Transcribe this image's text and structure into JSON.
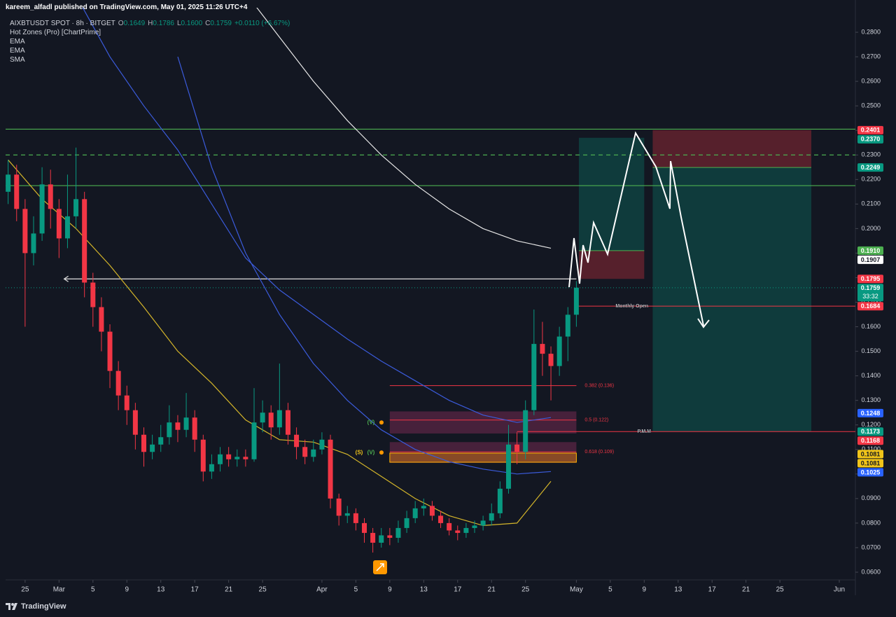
{
  "header": {
    "publisher": "kareem_alfadl published on TradingView.com, May 01, 2025 11:26 UTC+4"
  },
  "legend": {
    "symbol": "AIXBTUSDT SPOT · 8h · BITGET",
    "ohlc": [
      {
        "key": "O",
        "value": "0.1649"
      },
      {
        "key": "H",
        "value": "0.1786"
      },
      {
        "key": "L",
        "value": "0.1600"
      },
      {
        "key": "C",
        "value": "0.1759"
      }
    ],
    "change": "+0.0110 (+6.67%)",
    "indicators": [
      "Hot Zones (Pro) [ChartPrime]",
      "EMA",
      "EMA",
      "SMA"
    ]
  },
  "chart_data": {
    "type": "candlestick",
    "xlim": [
      -2.3,
      97.9
    ],
    "xticks": [
      {
        "value": 0,
        "label": "25"
      },
      {
        "value": 4,
        "label": "Mar"
      },
      {
        "value": 8,
        "label": "5"
      },
      {
        "value": 12,
        "label": "9"
      },
      {
        "value": 16,
        "label": "13"
      },
      {
        "value": 20,
        "label": "17"
      },
      {
        "value": 24,
        "label": "21"
      },
      {
        "value": 28,
        "label": "25"
      },
      {
        "value": 35,
        "label": "Apr"
      },
      {
        "value": 39,
        "label": "5"
      },
      {
        "value": 43,
        "label": "9"
      },
      {
        "value": 47,
        "label": "13"
      },
      {
        "value": 51,
        "label": "17"
      },
      {
        "value": 55,
        "label": "21"
      },
      {
        "value": 59,
        "label": "25"
      },
      {
        "value": 65,
        "label": "May"
      },
      {
        "value": 69,
        "label": "5"
      },
      {
        "value": 73,
        "label": "9"
      },
      {
        "value": 77,
        "label": "13"
      },
      {
        "value": 81,
        "label": "17"
      },
      {
        "value": 85,
        "label": "21"
      },
      {
        "value": 89,
        "label": "25"
      },
      {
        "value": 96,
        "label": "Jun"
      }
    ],
    "ylim": [
      0.057,
      0.29
    ],
    "yticks": [
      {
        "value": 0.06,
        "label": "0.0600"
      },
      {
        "value": 0.07,
        "label": "0.0700"
      },
      {
        "value": 0.08,
        "label": "0.0800"
      },
      {
        "value": 0.09,
        "label": "0.0900"
      },
      {
        "value": 0.1,
        "label": "0.1000"
      },
      {
        "value": 0.11,
        "label": "0.1100"
      },
      {
        "value": 0.12,
        "label": "0.1200"
      },
      {
        "value": 0.13,
        "label": "0.1300"
      },
      {
        "value": 0.14,
        "label": "0.1400"
      },
      {
        "value": 0.15,
        "label": "0.1500"
      },
      {
        "value": 0.16,
        "label": "0.1600"
      },
      {
        "value": 0.17,
        "label": "0.1700"
      },
      {
        "value": 0.18,
        "label": "0.1800"
      },
      {
        "value": 0.19,
        "label": "0.1900"
      },
      {
        "value": 0.2,
        "label": "0.2000"
      },
      {
        "value": 0.21,
        "label": "0.2100"
      },
      {
        "value": 0.22,
        "label": "0.2200"
      },
      {
        "value": 0.23,
        "label": "0.2300"
      },
      {
        "value": 0.24,
        "label": "0.2400"
      },
      {
        "value": 0.25,
        "label": "0.2500"
      },
      {
        "value": 0.26,
        "label": "0.2600"
      },
      {
        "value": 0.27,
        "label": "0.2700"
      },
      {
        "value": 0.28,
        "label": "0.2800"
      }
    ],
    "up_color": "#089981",
    "down_color": "#f23645",
    "x": [
      -2,
      -1,
      0,
      1,
      2,
      3,
      4,
      5,
      6,
      7,
      8,
      9,
      10,
      11,
      12,
      13,
      14,
      15,
      16,
      17,
      18,
      19,
      20,
      21,
      22,
      23,
      24,
      25,
      26,
      27,
      28,
      29,
      30,
      31,
      32,
      33,
      34,
      35,
      36,
      37,
      38,
      39,
      40,
      41,
      42,
      43,
      44,
      45,
      46,
      47,
      48,
      49,
      50,
      51,
      52,
      53,
      54,
      55,
      56,
      57,
      58,
      59,
      60,
      61,
      62,
      63,
      64,
      65
    ],
    "open": [
      0.215,
      0.222,
      0.208,
      0.19,
      0.198,
      0.218,
      0.208,
      0.196,
      0.205,
      0.212,
      0.178,
      0.168,
      0.158,
      0.142,
      0.132,
      0.126,
      0.116,
      0.109,
      0.112,
      0.115,
      0.121,
      0.118,
      0.123,
      0.114,
      0.101,
      0.104,
      0.108,
      0.106,
      0.107,
      0.106,
      0.121,
      0.125,
      0.119,
      0.126,
      0.116,
      0.111,
      0.107,
      0.11,
      0.114,
      0.09,
      0.083,
      0.084,
      0.08,
      0.076,
      0.072,
      0.075,
      0.074,
      0.078,
      0.082,
      0.086,
      0.087,
      0.083,
      0.08,
      0.077,
      0.076,
      0.078,
      0.079,
      0.081,
      0.084,
      0.094,
      0.112,
      0.109,
      0.126,
      0.153,
      0.149,
      0.144,
      0.156,
      0.1649
    ],
    "high": [
      0.228,
      0.226,
      0.212,
      0.205,
      0.225,
      0.224,
      0.212,
      0.222,
      0.233,
      0.215,
      0.182,
      0.172,
      0.161,
      0.146,
      0.136,
      0.129,
      0.119,
      0.116,
      0.12,
      0.128,
      0.124,
      0.133,
      0.126,
      0.116,
      0.108,
      0.111,
      0.111,
      0.11,
      0.11,
      0.135,
      0.13,
      0.128,
      0.145,
      0.129,
      0.119,
      0.114,
      0.114,
      0.117,
      0.116,
      0.092,
      0.087,
      0.086,
      0.082,
      0.078,
      0.078,
      0.078,
      0.081,
      0.085,
      0.089,
      0.09,
      0.089,
      0.085,
      0.082,
      0.079,
      0.08,
      0.081,
      0.083,
      0.088,
      0.097,
      0.12,
      0.117,
      0.13,
      0.167,
      0.162,
      0.152,
      0.16,
      0.168,
      0.1786
    ],
    "low": [
      0.21,
      0.203,
      0.16,
      0.185,
      0.195,
      0.2,
      0.188,
      0.192,
      0.2,
      0.172,
      0.16,
      0.15,
      0.135,
      0.126,
      0.12,
      0.11,
      0.103,
      0.106,
      0.109,
      0.112,
      0.113,
      0.115,
      0.109,
      0.097,
      0.098,
      0.101,
      0.103,
      0.103,
      0.103,
      0.105,
      0.117,
      0.114,
      0.116,
      0.112,
      0.106,
      0.104,
      0.105,
      0.108,
      0.086,
      0.079,
      0.08,
      0.077,
      0.072,
      0.068,
      0.07,
      0.071,
      0.072,
      0.076,
      0.08,
      0.083,
      0.081,
      0.078,
      0.075,
      0.073,
      0.074,
      0.076,
      0.077,
      0.079,
      0.082,
      0.092,
      0.104,
      0.106,
      0.124,
      0.14,
      0.13,
      0.14,
      0.146,
      0.16
    ],
    "close": [
      0.222,
      0.208,
      0.19,
      0.198,
      0.218,
      0.208,
      0.196,
      0.205,
      0.212,
      0.178,
      0.168,
      0.158,
      0.142,
      0.132,
      0.126,
      0.116,
      0.109,
      0.112,
      0.115,
      0.121,
      0.118,
      0.123,
      0.114,
      0.101,
      0.104,
      0.108,
      0.106,
      0.107,
      0.106,
      0.121,
      0.125,
      0.119,
      0.126,
      0.116,
      0.111,
      0.107,
      0.11,
      0.114,
      0.09,
      0.083,
      0.084,
      0.08,
      0.076,
      0.072,
      0.075,
      0.074,
      0.078,
      0.082,
      0.086,
      0.087,
      0.083,
      0.08,
      0.077,
      0.076,
      0.078,
      0.079,
      0.081,
      0.084,
      0.094,
      0.112,
      0.109,
      0.126,
      0.153,
      0.149,
      0.144,
      0.156,
      0.1649,
      0.1759
    ],
    "ma_x": [
      -2,
      2,
      6,
      10,
      14,
      18,
      22,
      26,
      30,
      34,
      38,
      42,
      46,
      50,
      54,
      58,
      62
    ],
    "lines": [
      {
        "color": "#e6e6e6",
        "values": [
          null,
          null,
          null,
          null,
          null,
          null,
          null,
          0.296,
          0.278,
          0.26,
          0.244,
          0.23,
          0.218,
          0.208,
          0.2,
          0.195,
          0.192
        ]
      },
      {
        "color": "#3b5bdb",
        "values": [
          null,
          null,
          0.295,
          0.27,
          0.25,
          0.232,
          0.21,
          0.188,
          0.175,
          0.165,
          0.155,
          0.146,
          0.138,
          0.13,
          0.124,
          0.121,
          0.123
        ]
      },
      {
        "color": "#3b5bdb",
        "values": [
          null,
          null,
          null,
          null,
          null,
          0.27,
          0.225,
          0.19,
          0.165,
          0.145,
          0.13,
          0.118,
          0.11,
          0.105,
          0.102,
          0.1,
          0.101
        ]
      },
      {
        "color": "#d4b52a",
        "values": [
          0.228,
          0.212,
          0.2,
          0.185,
          0.168,
          0.15,
          0.137,
          0.122,
          0.114,
          0.113,
          0.108,
          0.099,
          0.09,
          0.083,
          0.079,
          0.08,
          0.097
        ]
      }
    ],
    "levels": [
      {
        "value": 0.2405,
        "color": "#4caf50"
      },
      {
        "value": 0.23,
        "color": "#4caf50",
        "dashed": true
      },
      {
        "value": 0.2175,
        "color": "#4caf50"
      }
    ],
    "annotations": [
      {
        "text": "Monthly Open",
        "value": 0.1684,
        "x_start": 65,
        "color": "#f23645"
      },
      {
        "text": "P.M.M",
        "value": 0.1173,
        "x_start": 58,
        "color": "#f23645"
      }
    ],
    "arrow_level": {
      "value": 0.1795,
      "x": [
        4.6,
        65
      ]
    },
    "fib": {
      "x": [
        43,
        65
      ],
      "levels": [
        {
          "label": "0.382 (0.136)",
          "value": 0.136
        },
        {
          "label": "0.5 (0.122)",
          "value": 0.122
        },
        {
          "label": "0.618 (0.109)",
          "value": 0.109
        }
      ]
    },
    "zones": {
      "x": [
        43,
        65
      ],
      "items": [
        {
          "top": 0.1255,
          "bottom": 0.1165,
          "labels": [
            {
              "text": "(V)",
              "color": "#4caf50"
            }
          ]
        },
        {
          "top": 0.113,
          "bottom": 0.1045,
          "labels": [
            {
              "text": "(S)",
              "color": "#f0c419"
            },
            {
              "text": "(V)",
              "color": "#4caf50"
            }
          ]
        }
      ],
      "poc": {
        "top": 0.1085,
        "bottom": 0.1048
      }
    },
    "positions": [
      {
        "x": [
          65.3,
          73
        ],
        "entry": 0.191,
        "target": 0.237,
        "stop": 0.1795
      },
      {
        "x": [
          74,
          92.7
        ],
        "entry": 0.2249,
        "target": 0.1173,
        "stop": 0.2401
      }
    ],
    "price_tags": [
      {
        "value": 0.2401,
        "label": "0.2401",
        "color": "#f23645",
        "text_color": "#ffffff"
      },
      {
        "value": 0.237,
        "label": "0.2370",
        "color": "#089981",
        "text_color": "#ffffff"
      },
      {
        "value": 0.2249,
        "label": "0.2249",
        "color": "#089981",
        "text_color": "#ffffff"
      },
      {
        "value": 0.191,
        "label": "0.1910",
        "color": "#4caf50",
        "text_color": "#ffffff"
      },
      {
        "value": 0.1907,
        "label": "0.1907",
        "color": "#ffffff",
        "text_color": "#131722"
      },
      {
        "value": 0.1795,
        "label": "0.1795",
        "color": "#f23645",
        "text_color": "#ffffff"
      },
      {
        "value": 0.1759,
        "label": "0.1759",
        "color": "#089981",
        "text_color": "#ffffff",
        "countdown": "33:32"
      },
      {
        "value": 0.1684,
        "label": "0.1684",
        "color": "#f23645",
        "text_color": "#ffffff"
      },
      {
        "value": 0.1248,
        "label": "0.1248",
        "color": "#2962ff",
        "text_color": "#ffffff"
      },
      {
        "value": 0.1173,
        "label": "0.1173",
        "color": "#089981",
        "text_color": "#ffffff"
      },
      {
        "value": 0.1168,
        "label": "0.1168",
        "color": "#f23645",
        "text_color": "#ffffff"
      },
      {
        "value": 0.1081,
        "label": "0.1081",
        "color": "#f0c419",
        "text_color": "#131722"
      },
      {
        "value": 0.1081,
        "label": "0.1081",
        "color": "#f0c419",
        "text_color": "#131722"
      },
      {
        "value": 0.1025,
        "label": "0.1025",
        "color": "#2962ff",
        "text_color": "#ffffff"
      }
    ]
  },
  "footer": {
    "brand": "TradingView"
  }
}
